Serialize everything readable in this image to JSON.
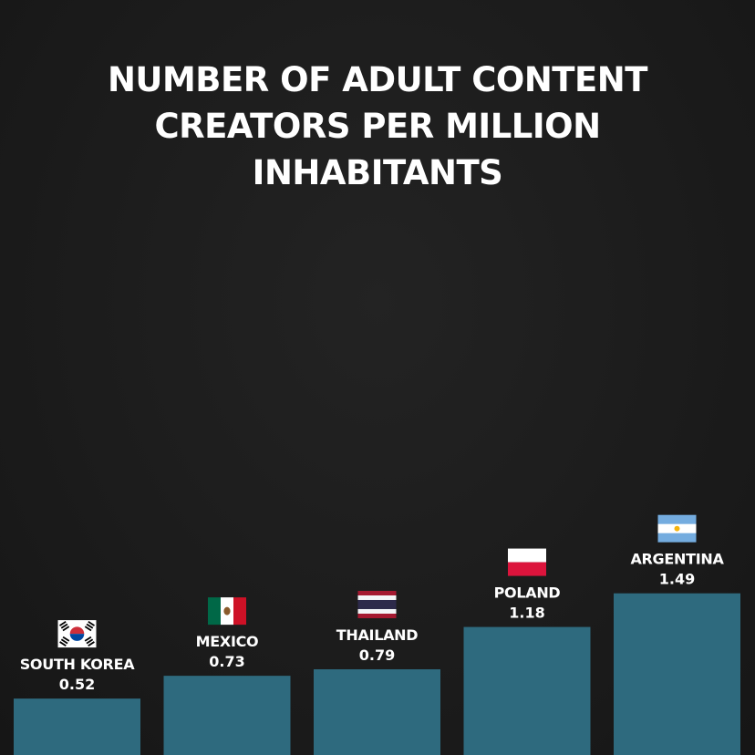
{
  "chart_data": {
    "type": "bar",
    "title": "NUMBER OF ADULT CONTENT CREATORS PER MILLION INHABITANTS",
    "categories": [
      "SOUTH KOREA",
      "MEXICO",
      "THAILAND",
      "POLAND",
      "ARGENTINA"
    ],
    "values": [
      0.52,
      0.73,
      0.79,
      1.18,
      1.49
    ],
    "value_labels": [
      "0.52",
      "0.73",
      "0.79",
      "1.18",
      "1.49"
    ],
    "flags": [
      "south-korea-flag-icon",
      "mexico-flag-icon",
      "thailand-flag-icon",
      "poland-flag-icon",
      "argentina-flag-icon"
    ],
    "bar_color": "#2e6a7e",
    "grid": false
  }
}
